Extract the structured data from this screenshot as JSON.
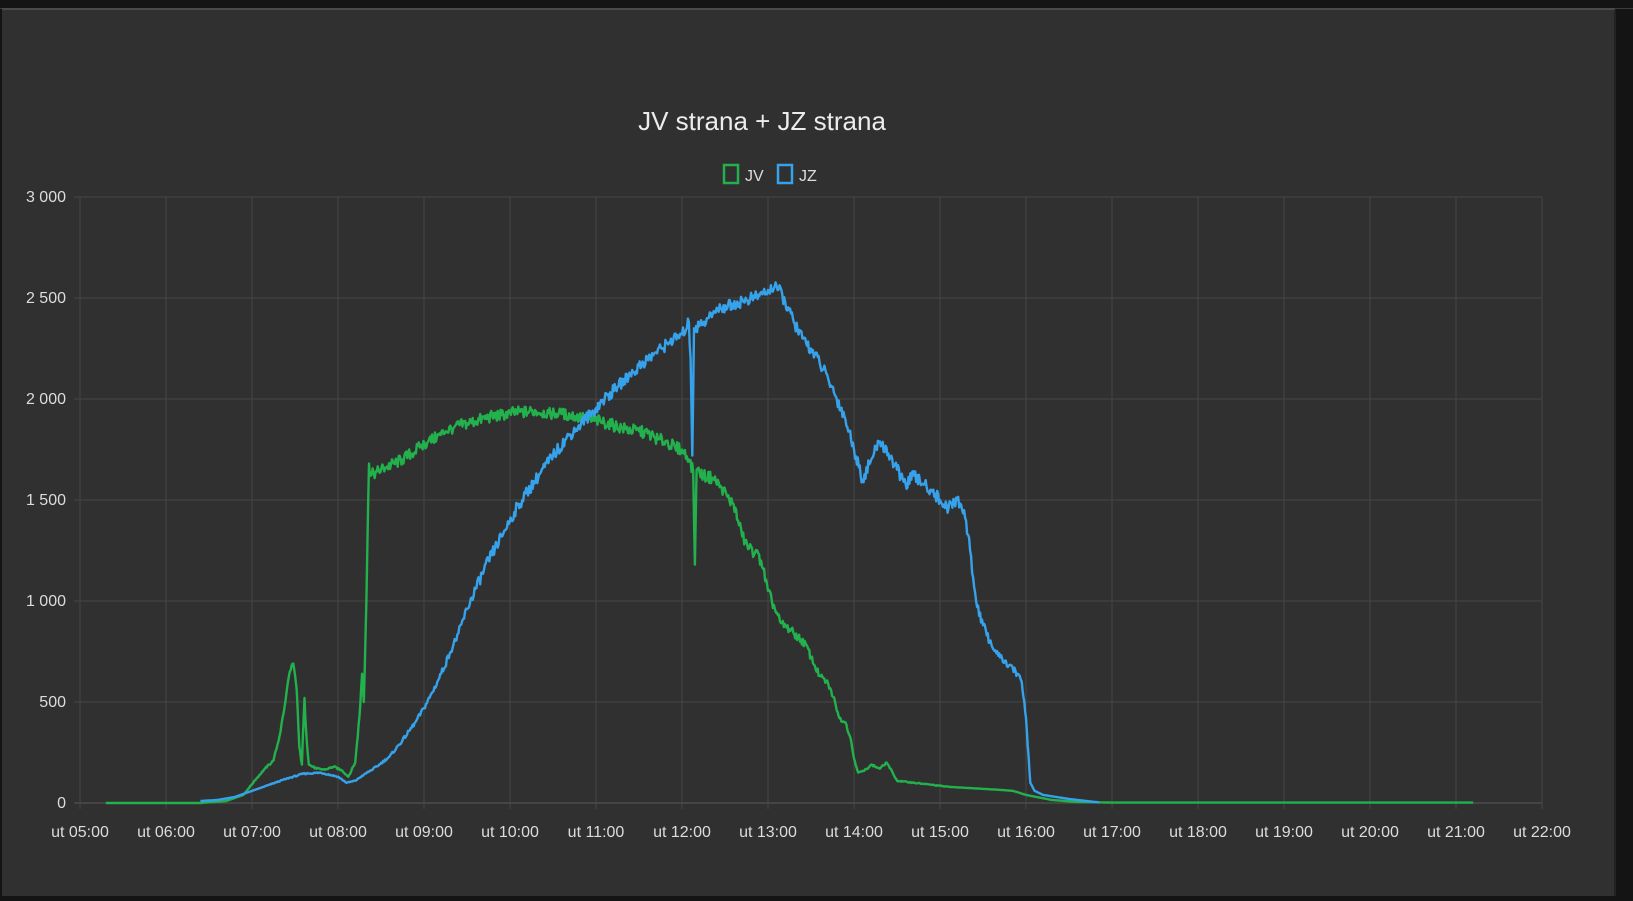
{
  "chart_data": {
    "type": "line",
    "title": "JV strana + JZ strana",
    "xlabel": "",
    "ylabel": "",
    "ylim": [
      0,
      3000
    ],
    "yticks": [
      0,
      500,
      1000,
      1500,
      2000,
      2500,
      3000
    ],
    "ytick_labels": [
      "0",
      "500",
      "1 000",
      "1 500",
      "2 000",
      "2 500",
      "3 000"
    ],
    "xlim": [
      5.0,
      22.0
    ],
    "xticks": [
      5,
      6,
      7,
      8,
      9,
      10,
      11,
      12,
      13,
      14,
      15,
      16,
      17,
      18,
      19,
      20,
      21,
      22
    ],
    "xtick_labels": [
      "ut 05:00",
      "ut 06:00",
      "ut 07:00",
      "ut 08:00",
      "ut 09:00",
      "ut 10:00",
      "ut 11:00",
      "ut 12:00",
      "ut 13:00",
      "ut 14:00",
      "ut 15:00",
      "ut 16:00",
      "ut 17:00",
      "ut 18:00",
      "ut 19:00",
      "ut 20:00",
      "ut 21:00",
      "ut 22:00"
    ],
    "grid": true,
    "legend_position": "top-center",
    "series": [
      {
        "name": "JV",
        "color": "#22b14c",
        "points": [
          [
            5.3,
            0
          ],
          [
            6.4,
            0
          ],
          [
            6.7,
            10
          ],
          [
            6.9,
            40
          ],
          [
            7.05,
            120
          ],
          [
            7.15,
            170
          ],
          [
            7.25,
            210
          ],
          [
            7.32,
            330
          ],
          [
            7.38,
            480
          ],
          [
            7.43,
            630
          ],
          [
            7.48,
            690
          ],
          [
            7.52,
            560
          ],
          [
            7.55,
            280
          ],
          [
            7.58,
            190
          ],
          [
            7.61,
            520
          ],
          [
            7.63,
            350
          ],
          [
            7.66,
            190
          ],
          [
            7.75,
            170
          ],
          [
            7.85,
            165
          ],
          [
            7.95,
            180
          ],
          [
            8.05,
            160
          ],
          [
            8.12,
            130
          ],
          [
            8.2,
            200
          ],
          [
            8.25,
            430
          ],
          [
            8.28,
            640
          ],
          [
            8.3,
            500
          ],
          [
            8.33,
            1000
          ],
          [
            8.36,
            1680
          ],
          [
            8.38,
            1620
          ],
          [
            8.45,
            1640
          ],
          [
            8.55,
            1660
          ],
          [
            8.65,
            1680
          ],
          [
            8.75,
            1700
          ],
          [
            8.85,
            1730
          ],
          [
            8.95,
            1760
          ],
          [
            9.05,
            1790
          ],
          [
            9.15,
            1810
          ],
          [
            9.25,
            1840
          ],
          [
            9.35,
            1860
          ],
          [
            9.5,
            1880
          ],
          [
            9.6,
            1890
          ],
          [
            9.75,
            1910
          ],
          [
            9.9,
            1920
          ],
          [
            10.0,
            1930
          ],
          [
            10.15,
            1935
          ],
          [
            10.3,
            1940
          ],
          [
            10.45,
            1930
          ],
          [
            10.6,
            1925
          ],
          [
            10.75,
            1915
          ],
          [
            10.9,
            1900
          ],
          [
            11.05,
            1890
          ],
          [
            11.2,
            1870
          ],
          [
            11.35,
            1850
          ],
          [
            11.5,
            1840
          ],
          [
            11.6,
            1830
          ],
          [
            11.72,
            1800
          ],
          [
            11.82,
            1790
          ],
          [
            11.92,
            1760
          ],
          [
            12.0,
            1750
          ],
          [
            12.08,
            1700
          ],
          [
            12.13,
            1640
          ],
          [
            12.15,
            1180
          ],
          [
            12.17,
            1650
          ],
          [
            12.25,
            1620
          ],
          [
            12.35,
            1610
          ],
          [
            12.45,
            1570
          ],
          [
            12.55,
            1500
          ],
          [
            12.6,
            1480
          ],
          [
            12.65,
            1400
          ],
          [
            12.7,
            1320
          ],
          [
            12.78,
            1260
          ],
          [
            12.85,
            1240
          ],
          [
            12.92,
            1200
          ],
          [
            13.0,
            1050
          ],
          [
            13.08,
            960
          ],
          [
            13.15,
            890
          ],
          [
            13.25,
            860
          ],
          [
            13.35,
            820
          ],
          [
            13.45,
            780
          ],
          [
            13.5,
            720
          ],
          [
            13.6,
            630
          ],
          [
            13.7,
            590
          ],
          [
            13.78,
            500
          ],
          [
            13.83,
            420
          ],
          [
            13.9,
            400
          ],
          [
            13.96,
            320
          ],
          [
            14.0,
            220
          ],
          [
            14.05,
            150
          ],
          [
            14.12,
            160
          ],
          [
            14.2,
            190
          ],
          [
            14.3,
            170
          ],
          [
            14.38,
            200
          ],
          [
            14.45,
            150
          ],
          [
            14.5,
            110
          ],
          [
            14.7,
            100
          ],
          [
            14.9,
            90
          ],
          [
            15.1,
            80
          ],
          [
            15.3,
            75
          ],
          [
            15.5,
            70
          ],
          [
            15.7,
            65
          ],
          [
            15.85,
            60
          ],
          [
            16.0,
            40
          ],
          [
            16.3,
            15
          ],
          [
            16.6,
            5
          ],
          [
            17.0,
            2
          ],
          [
            18.0,
            2
          ],
          [
            19.0,
            2
          ],
          [
            20.0,
            2
          ],
          [
            21.2,
            2
          ]
        ]
      },
      {
        "name": "JZ",
        "color": "#36a2eb",
        "points": [
          [
            6.4,
            10
          ],
          [
            6.6,
            15
          ],
          [
            6.8,
            30
          ],
          [
            7.0,
            60
          ],
          [
            7.2,
            90
          ],
          [
            7.4,
            120
          ],
          [
            7.6,
            145
          ],
          [
            7.8,
            150
          ],
          [
            8.0,
            130
          ],
          [
            8.1,
            100
          ],
          [
            8.2,
            110
          ],
          [
            8.3,
            140
          ],
          [
            8.45,
            180
          ],
          [
            8.6,
            230
          ],
          [
            8.75,
            310
          ],
          [
            8.9,
            400
          ],
          [
            9.0,
            470
          ],
          [
            9.1,
            550
          ],
          [
            9.2,
            640
          ],
          [
            9.3,
            740
          ],
          [
            9.4,
            840
          ],
          [
            9.5,
            960
          ],
          [
            9.6,
            1060
          ],
          [
            9.75,
            1200
          ],
          [
            9.9,
            1320
          ],
          [
            10.05,
            1440
          ],
          [
            10.2,
            1540
          ],
          [
            10.35,
            1630
          ],
          [
            10.5,
            1720
          ],
          [
            10.65,
            1800
          ],
          [
            10.8,
            1870
          ],
          [
            10.95,
            1930
          ],
          [
            11.1,
            2000
          ],
          [
            11.25,
            2060
          ],
          [
            11.4,
            2120
          ],
          [
            11.55,
            2180
          ],
          [
            11.7,
            2230
          ],
          [
            11.85,
            2280
          ],
          [
            12.0,
            2320
          ],
          [
            12.08,
            2380
          ],
          [
            12.1,
            2200
          ],
          [
            12.12,
            1720
          ],
          [
            12.14,
            2350
          ],
          [
            12.2,
            2360
          ],
          [
            12.3,
            2400
          ],
          [
            12.45,
            2450
          ],
          [
            12.6,
            2470
          ],
          [
            12.75,
            2490
          ],
          [
            12.9,
            2510
          ],
          [
            13.0,
            2540
          ],
          [
            13.1,
            2560
          ],
          [
            13.2,
            2480
          ],
          [
            13.3,
            2380
          ],
          [
            13.4,
            2300
          ],
          [
            13.5,
            2250
          ],
          [
            13.6,
            2180
          ],
          [
            13.7,
            2100
          ],
          [
            13.8,
            2000
          ],
          [
            13.9,
            1900
          ],
          [
            14.0,
            1750
          ],
          [
            14.1,
            1600
          ],
          [
            14.2,
            1700
          ],
          [
            14.3,
            1790
          ],
          [
            14.4,
            1730
          ],
          [
            14.5,
            1650
          ],
          [
            14.6,
            1580
          ],
          [
            14.7,
            1620
          ],
          [
            14.8,
            1580
          ],
          [
            14.9,
            1550
          ],
          [
            15.0,
            1500
          ],
          [
            15.1,
            1460
          ],
          [
            15.2,
            1500
          ],
          [
            15.28,
            1450
          ],
          [
            15.35,
            1250
          ],
          [
            15.42,
            1000
          ],
          [
            15.5,
            880
          ],
          [
            15.6,
            780
          ],
          [
            15.7,
            720
          ],
          [
            15.8,
            680
          ],
          [
            15.9,
            640
          ],
          [
            15.95,
            600
          ],
          [
            16.0,
            420
          ],
          [
            16.05,
            100
          ],
          [
            16.1,
            60
          ],
          [
            16.2,
            40
          ],
          [
            16.35,
            30
          ],
          [
            16.5,
            20
          ],
          [
            16.7,
            10
          ],
          [
            16.85,
            3
          ]
        ]
      }
    ]
  }
}
